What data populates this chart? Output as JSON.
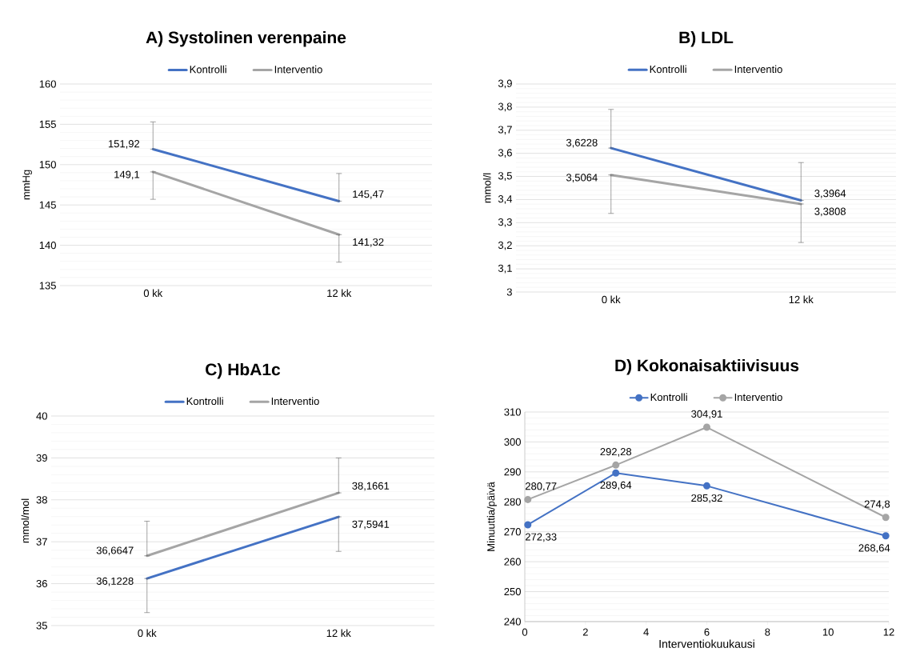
{
  "chart_data": [
    {
      "type": "line",
      "title": "A) Systolinen verenpaine",
      "ylabel": "mmHg",
      "categories": [
        "0 kk",
        "12 kk"
      ],
      "ylim": [
        135,
        160
      ],
      "yticks": [
        135,
        140,
        145,
        150,
        155,
        160
      ],
      "grid": "y",
      "legend": "top",
      "marker": "none",
      "series": [
        {
          "name": "Kontrolli",
          "color": "#4472c4",
          "values": [
            151.92,
            145.47
          ],
          "value_labels": [
            "151,92",
            "145,47"
          ],
          "errors": [
            [
              151.92,
              155.3
            ],
            [
              145.47,
              148.9
            ]
          ]
        },
        {
          "name": "Interventio",
          "color": "#a5a5a5",
          "values": [
            149.1,
            141.32
          ],
          "value_labels": [
            "149,1",
            "141,32"
          ],
          "errors": [
            [
              145.7,
              149.1
            ],
            [
              137.9,
              141.32
            ]
          ]
        }
      ]
    },
    {
      "type": "line",
      "title": "B) LDL",
      "ylabel": "mmol/l",
      "categories": [
        "0 kk",
        "12 kk"
      ],
      "ylim": [
        3,
        3.9
      ],
      "yticks": [
        3,
        {
          "value": 3.1,
          "label": "3,1"
        },
        {
          "value": 3.2,
          "label": "3,2"
        },
        {
          "value": 3.3,
          "label": "3,3"
        },
        {
          "value": 3.4,
          "label": "3,4"
        },
        {
          "value": 3.5,
          "label": "3,5"
        },
        {
          "value": 3.6,
          "label": "3,6"
        },
        {
          "value": 3.7,
          "label": "3,7"
        },
        {
          "value": 3.8,
          "label": "3,8"
        },
        {
          "value": 3.9,
          "label": "3,9"
        }
      ],
      "grid": "y",
      "legend": "top",
      "marker": "none",
      "series": [
        {
          "name": "Kontrolli",
          "color": "#4472c4",
          "values": [
            3.6228,
            3.3964
          ],
          "value_labels": [
            "3,6228",
            "3,3964"
          ],
          "errors": [
            [
              3.6228,
              3.79
            ],
            [
              3.3964,
              3.56
            ]
          ]
        },
        {
          "name": "Interventio",
          "color": "#a5a5a5",
          "values": [
            3.5064,
            3.3808
          ],
          "value_labels": [
            "3,5064",
            "3,3808"
          ],
          "errors": [
            [
              3.34,
              3.5064
            ],
            [
              3.214,
              3.3808
            ]
          ]
        }
      ]
    },
    {
      "type": "line",
      "title": "C) HbA1c",
      "ylabel": "mmol/mol",
      "categories": [
        "0 kk",
        "12 kk"
      ],
      "ylim": [
        35,
        40
      ],
      "yticks": [
        35,
        36,
        37,
        38,
        39,
        40
      ],
      "grid": "y",
      "legend": "top",
      "marker": "none",
      "series": [
        {
          "name": "Kontrolli",
          "color": "#4472c4",
          "values": [
            36.1228,
            37.5941
          ],
          "value_labels": [
            "36,1228",
            "37,5941"
          ],
          "errors": [
            [
              35.31,
              36.1228
            ],
            [
              36.77,
              37.5941
            ]
          ]
        },
        {
          "name": "Interventio",
          "color": "#a5a5a5",
          "values": [
            36.6647,
            38.1661
          ],
          "value_labels": [
            "36,6647",
            "38,1661"
          ],
          "errors": [
            [
              36.6647,
              37.49
            ],
            [
              38.1661,
              39.0
            ]
          ]
        }
      ]
    },
    {
      "type": "line",
      "title": "D) Kokonaisaktiivisuus",
      "xlabel": "Interventiokuukausi",
      "ylabel": "Minuuttia/päivä",
      "x": [
        0.1,
        3,
        6,
        11.9
      ],
      "xlim": [
        0,
        12
      ],
      "xticks": [
        0,
        2,
        4,
        6,
        8,
        10,
        12
      ],
      "ylim": [
        240,
        310
      ],
      "yticks": [
        240,
        250,
        260,
        270,
        280,
        290,
        300,
        310
      ],
      "grid": "y",
      "legend": "top",
      "marker": "circle",
      "series": [
        {
          "name": "Kontrolli",
          "color": "#4472c4",
          "values": [
            272.33,
            289.64,
            285.32,
            268.64
          ],
          "value_labels": [
            "272,33",
            "289,64",
            "285,32",
            "268,64"
          ]
        },
        {
          "name": "Interventio",
          "color": "#a5a5a5",
          "values": [
            280.77,
            292.28,
            304.91,
            274.8
          ],
          "value_labels": [
            "280,77",
            "292,28",
            "304,91",
            "274,8"
          ]
        }
      ]
    }
  ]
}
